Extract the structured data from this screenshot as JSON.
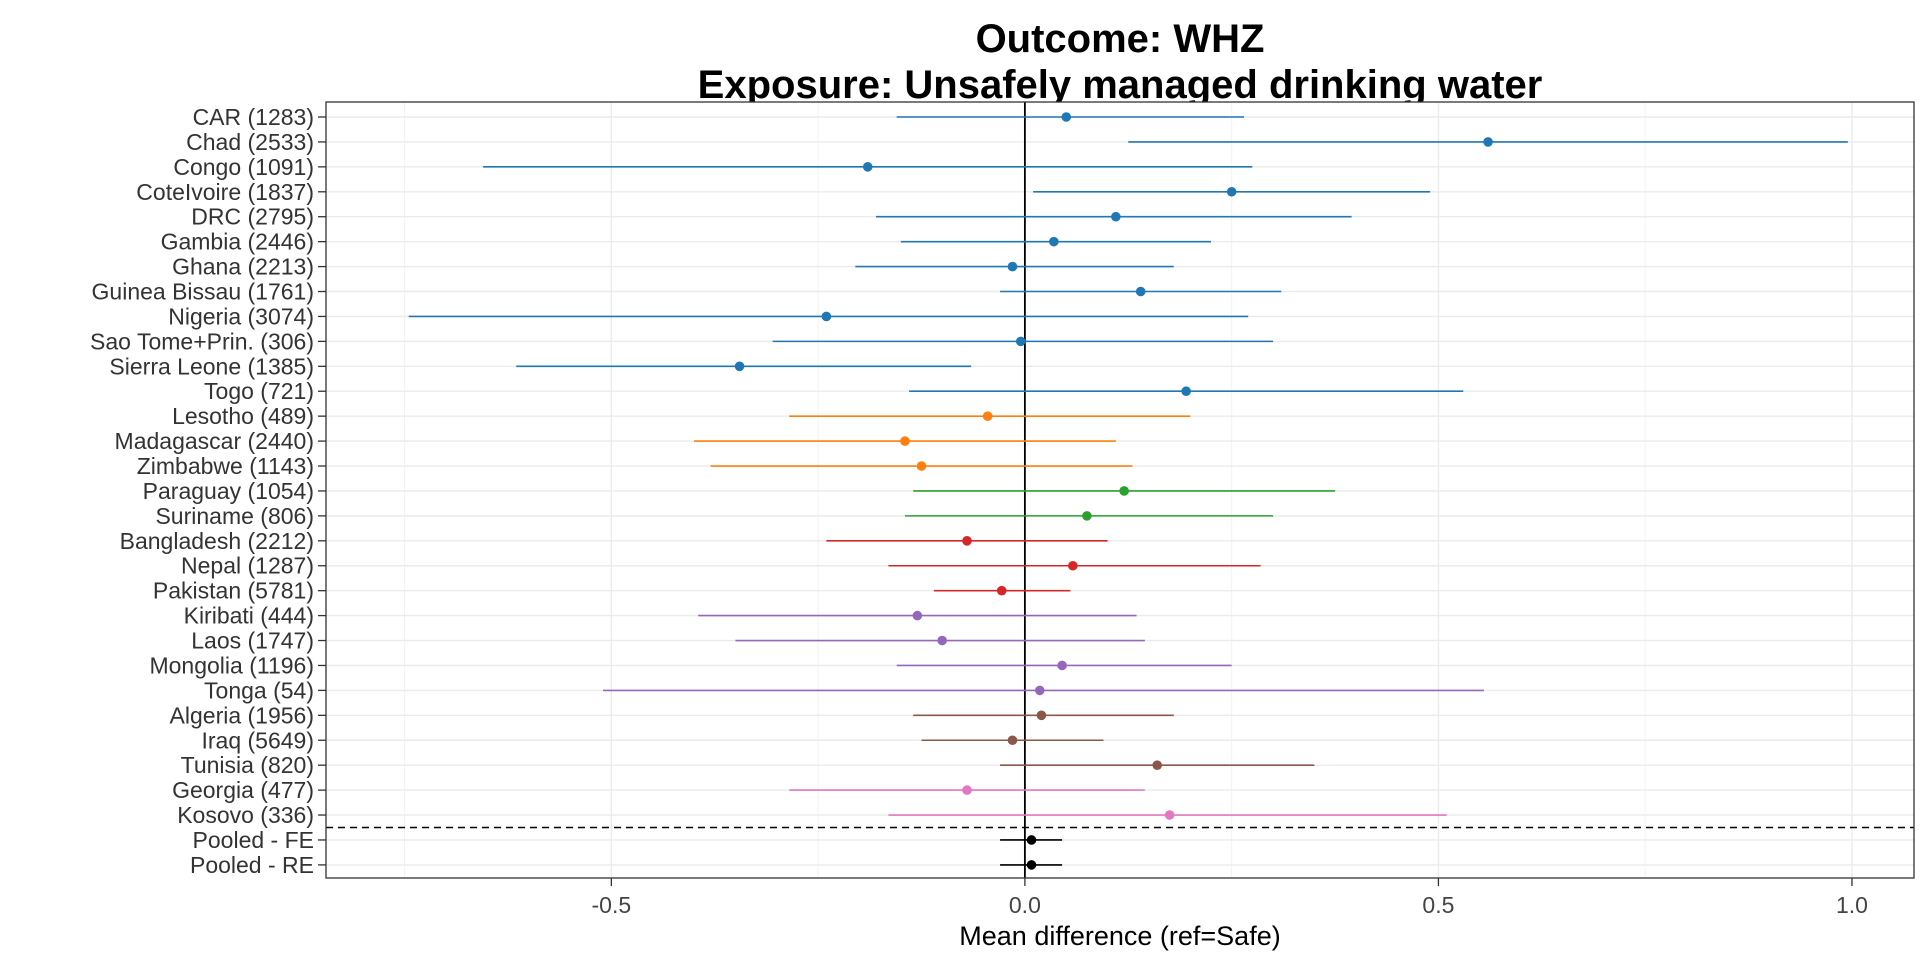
{
  "chart_data": {
    "type": "scatter",
    "subtype": "forest-plot",
    "title": "Outcome: WHZ",
    "subtitle": "Exposure: Unsafely managed drinking water",
    "xlabel": "Mean difference (ref=Safe)",
    "ylabel": "",
    "xlim": [
      -0.845,
      1.075
    ],
    "xticks": [
      -0.5,
      0.0,
      0.5,
      1.0
    ],
    "xtick_labels": [
      "-0.5",
      "0.0",
      "0.5",
      "1.0"
    ],
    "grid": true,
    "reference_line_x": 0,
    "separator": "dashed line between Kosovo (336) and Pooled - FE",
    "colors": {
      "blue": "#1f77b4",
      "orange": "#ff7f0e",
      "green": "#2ca02c",
      "red": "#d62728",
      "purple": "#9467bd",
      "brown": "#8c564b",
      "pink": "#e377c2",
      "black": "#000000"
    },
    "rows": [
      {
        "label": "CAR (1283)",
        "est": 0.05,
        "lo": -0.155,
        "hi": 0.265,
        "color": "blue"
      },
      {
        "label": "Chad (2533)",
        "est": 0.56,
        "lo": 0.125,
        "hi": 0.995,
        "color": "blue"
      },
      {
        "label": "Congo (1091)",
        "est": -0.19,
        "lo": -0.655,
        "hi": 0.275,
        "color": "blue"
      },
      {
        "label": "CoteIvoire (1837)",
        "est": 0.25,
        "lo": 0.01,
        "hi": 0.49,
        "color": "blue"
      },
      {
        "label": "DRC (2795)",
        "est": 0.11,
        "lo": -0.18,
        "hi": 0.395,
        "color": "blue"
      },
      {
        "label": "Gambia (2446)",
        "est": 0.035,
        "lo": -0.15,
        "hi": 0.225,
        "color": "blue"
      },
      {
        "label": "Ghana (2213)",
        "est": -0.015,
        "lo": -0.205,
        "hi": 0.18,
        "color": "blue"
      },
      {
        "label": "Guinea Bissau (1761)",
        "est": 0.14,
        "lo": -0.03,
        "hi": 0.31,
        "color": "blue"
      },
      {
        "label": "Nigeria (3074)",
        "est": -0.24,
        "lo": -0.745,
        "hi": 0.27,
        "color": "blue"
      },
      {
        "label": "Sao Tome+Prin. (306)",
        "est": -0.005,
        "lo": -0.305,
        "hi": 0.3,
        "color": "blue"
      },
      {
        "label": "Sierra Leone (1385)",
        "est": -0.345,
        "lo": -0.615,
        "hi": -0.065,
        "color": "blue"
      },
      {
        "label": "Togo (721)",
        "est": 0.195,
        "lo": -0.14,
        "hi": 0.53,
        "color": "blue"
      },
      {
        "label": "Lesotho (489)",
        "est": -0.045,
        "lo": -0.285,
        "hi": 0.2,
        "color": "orange"
      },
      {
        "label": "Madagascar (2440)",
        "est": -0.145,
        "lo": -0.4,
        "hi": 0.11,
        "color": "orange"
      },
      {
        "label": "Zimbabwe (1143)",
        "est": -0.125,
        "lo": -0.38,
        "hi": 0.13,
        "color": "orange"
      },
      {
        "label": "Paraguay (1054)",
        "est": 0.12,
        "lo": -0.135,
        "hi": 0.375,
        "color": "green"
      },
      {
        "label": "Suriname (806)",
        "est": 0.075,
        "lo": -0.145,
        "hi": 0.3,
        "color": "green"
      },
      {
        "label": "Bangladesh (2212)",
        "est": -0.07,
        "lo": -0.24,
        "hi": 0.1,
        "color": "red"
      },
      {
        "label": "Nepal (1287)",
        "est": 0.058,
        "lo": -0.165,
        "hi": 0.285,
        "color": "red"
      },
      {
        "label": "Pakistan (5781)",
        "est": -0.028,
        "lo": -0.11,
        "hi": 0.055,
        "color": "red"
      },
      {
        "label": "Kiribati (444)",
        "est": -0.13,
        "lo": -0.395,
        "hi": 0.135,
        "color": "purple"
      },
      {
        "label": "Laos (1747)",
        "est": -0.1,
        "lo": -0.35,
        "hi": 0.145,
        "color": "purple"
      },
      {
        "label": "Mongolia (1196)",
        "est": 0.045,
        "lo": -0.155,
        "hi": 0.25,
        "color": "purple"
      },
      {
        "label": "Tonga (54)",
        "est": 0.018,
        "lo": -0.51,
        "hi": 0.555,
        "color": "purple"
      },
      {
        "label": "Algeria (1956)",
        "est": 0.02,
        "lo": -0.135,
        "hi": 0.18,
        "color": "brown"
      },
      {
        "label": "Iraq (5649)",
        "est": -0.015,
        "lo": -0.125,
        "hi": 0.095,
        "color": "brown"
      },
      {
        "label": "Tunisia (820)",
        "est": 0.16,
        "lo": -0.03,
        "hi": 0.35,
        "color": "brown"
      },
      {
        "label": "Georgia (477)",
        "est": -0.07,
        "lo": -0.285,
        "hi": 0.145,
        "color": "pink"
      },
      {
        "label": "Kosovo (336)",
        "est": 0.175,
        "lo": -0.165,
        "hi": 0.51,
        "color": "pink"
      },
      {
        "label": "Pooled - FE",
        "est": 0.008,
        "lo": -0.03,
        "hi": 0.045,
        "color": "black"
      },
      {
        "label": "Pooled - RE",
        "est": 0.008,
        "lo": -0.03,
        "hi": 0.045,
        "color": "black"
      }
    ]
  }
}
